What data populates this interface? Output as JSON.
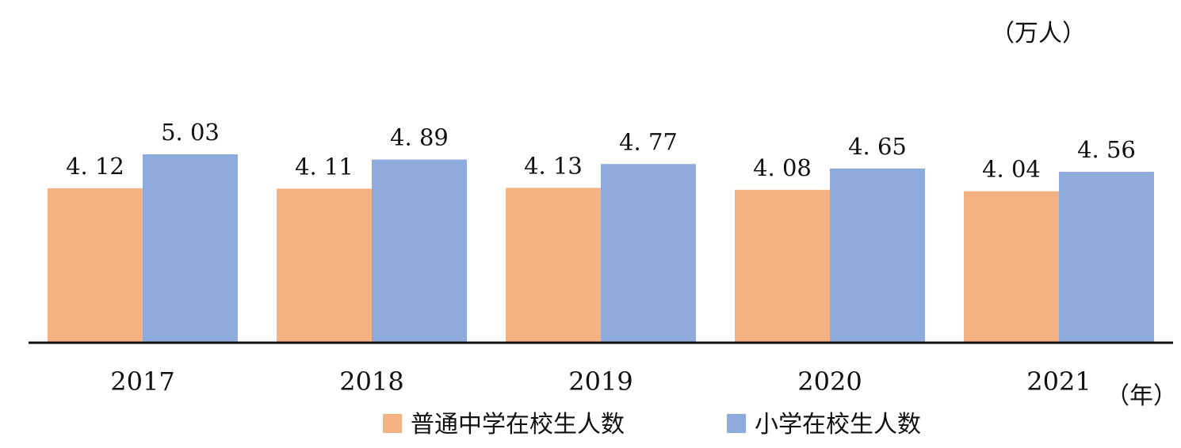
{
  "chart_data": {
    "type": "bar",
    "title": "",
    "xlabel": "",
    "ylabel": "",
    "y_unit": "（万人）",
    "x_unit": "（年）",
    "categories": [
      "2017",
      "2018",
      "2019",
      "2020",
      "2021"
    ],
    "series": [
      {
        "name": "普通中学在校生人数",
        "values": [
          4.12,
          4.11,
          4.13,
          4.08,
          4.04
        ],
        "color": "#F4B183"
      },
      {
        "name": "小学在校生人数",
        "values": [
          5.03,
          4.89,
          4.77,
          4.65,
          4.56
        ],
        "color": "#8FAADC"
      }
    ],
    "value_labels": [
      [
        "4. 12",
        "4. 11",
        "4. 13",
        "4. 08",
        "4. 04"
      ],
      [
        "5. 03",
        "4. 89",
        "4. 77",
        "4. 65",
        "4. 56"
      ]
    ],
    "ylim": [
      0,
      5.03
    ],
    "grid": false,
    "legend_position": "bottom"
  }
}
